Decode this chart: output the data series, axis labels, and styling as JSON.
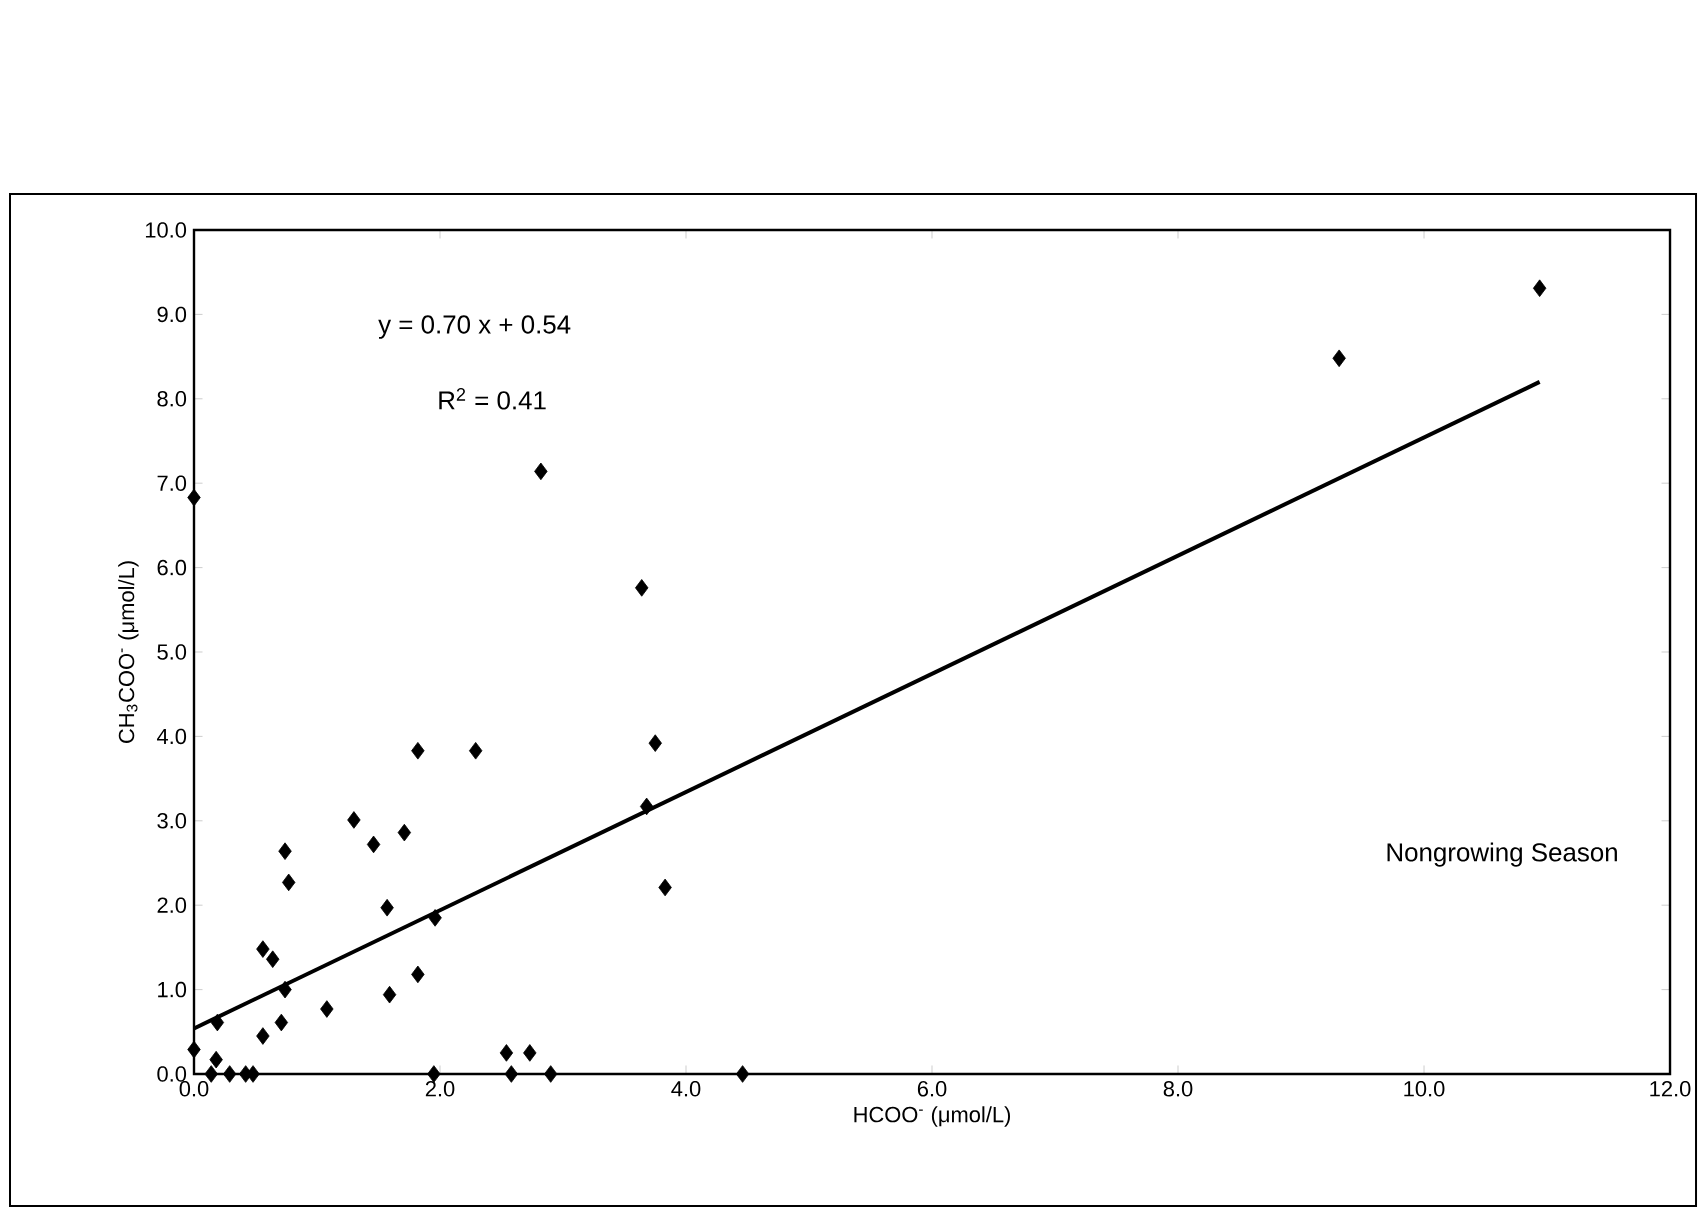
{
  "chart_data": {
    "type": "scatter",
    "xlabel": "HCOO$^{-}$ (μmol/L)",
    "ylabel": "CH$_{3}$COO$^{-}$ (μmol/L)",
    "annotations": [
      "y = 0.70 x + 0.54",
      "R$^{2}$ = 0.41",
      "Nongrowing Season"
    ],
    "xlim": [
      0,
      12
    ],
    "ylim": [
      0,
      10
    ],
    "xticks": [
      {
        "value": 0,
        "label": "0.0"
      },
      {
        "value": 2,
        "label": "2.0"
      },
      {
        "value": 4,
        "label": "4.0"
      },
      {
        "value": 6,
        "label": "6.0"
      },
      {
        "value": 8,
        "label": "8.0"
      },
      {
        "value": 10,
        "label": "10.0"
      },
      {
        "value": 12,
        "label": "12.0"
      }
    ],
    "yticks": [
      {
        "value": 0,
        "label": "0.0"
      },
      {
        "value": 1,
        "label": "1.0"
      },
      {
        "value": 2,
        "label": "2.0"
      },
      {
        "value": 3,
        "label": "3.0"
      },
      {
        "value": 4,
        "label": "4.0"
      },
      {
        "value": 5,
        "label": "5.0"
      },
      {
        "value": 6,
        "label": "6.0"
      },
      {
        "value": 7,
        "label": "7.0"
      },
      {
        "value": 8,
        "label": "8.0"
      },
      {
        "value": 9,
        "label": "9.0"
      },
      {
        "value": 10,
        "label": "10.0"
      }
    ],
    "series": [
      {
        "color": "#000000",
        "marker": "diamond",
        "x": [
          0.0,
          0.0,
          0.19,
          0.18,
          0.14,
          0.29,
          0.42,
          0.48,
          0.56,
          0.56,
          0.64,
          0.71,
          0.74,
          0.77,
          0.74,
          1.08,
          1.3,
          1.46,
          1.57,
          1.59,
          1.71,
          1.82,
          1.82,
          1.96,
          1.95,
          2.29,
          2.54,
          2.58,
          2.73,
          2.82,
          2.9,
          3.64,
          3.68,
          3.75,
          3.83,
          4.46,
          9.31,
          10.94
        ],
        "values": [
          6.83,
          0.29,
          0.61,
          0.17,
          0,
          0,
          0,
          0,
          0.45,
          1.48,
          1.36,
          0.61,
          2.64,
          2.27,
          1.0,
          0.77,
          3.01,
          2.72,
          1.97,
          0.94,
          2.86,
          3.83,
          1.18,
          1.85,
          0,
          3.83,
          0.25,
          0,
          0.25,
          7.14,
          0,
          5.76,
          3.17,
          3.92,
          2.21,
          0,
          8.48,
          9.31
        ]
      },
      {
        "type": "line",
        "color": "#000000",
        "line_style": "solid",
        "x": [
          0,
          10.94
        ],
        "values": [
          0.54,
          8.2
        ]
      }
    ]
  }
}
